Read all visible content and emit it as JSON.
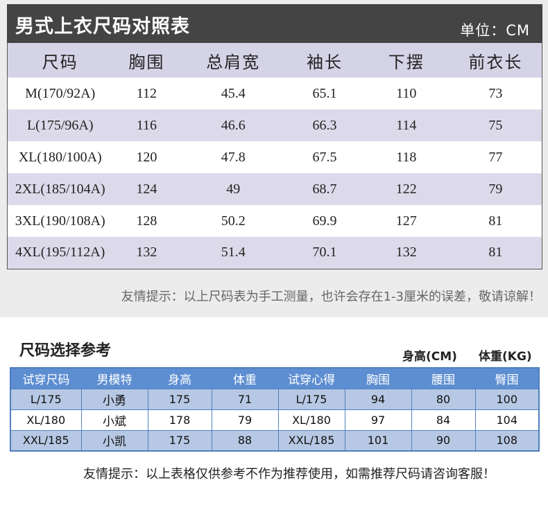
{
  "size_chart": {
    "title": "男式上衣尺码对照表",
    "unit": "单位：CM",
    "headers": [
      "尺码",
      "胸围",
      "总肩宽",
      "袖长",
      "下摆",
      "前衣长"
    ],
    "rows": [
      [
        "M(170/92A)",
        "112",
        "45.4",
        "65.1",
        "110",
        "73"
      ],
      [
        "L(175/96A)",
        "116",
        "46.6",
        "66.3",
        "114",
        "75"
      ],
      [
        "XL(180/100A)",
        "120",
        "47.8",
        "67.5",
        "118",
        "77"
      ],
      [
        "2XL(185/104A)",
        "124",
        "49",
        "68.7",
        "122",
        "79"
      ],
      [
        "3XL(190/108A)",
        "128",
        "50.2",
        "69.9",
        "127",
        "81"
      ],
      [
        "4XL(195/112A)",
        "132",
        "51.4",
        "70.1",
        "132",
        "81"
      ]
    ],
    "note": "友情提示：以上尺码表为手工测量，也许会存在1-3厘米的误差，敬请谅解！"
  },
  "reference": {
    "title": "尺码选择参考",
    "height_unit_label": "身高(CM)",
    "weight_unit_label": "体重(KG)",
    "headers": [
      "试穿尺码",
      "男模特",
      "身高",
      "体重",
      "试穿心得",
      "胸围",
      "腰围",
      "臀围"
    ],
    "rows": [
      [
        "L/175",
        "小勇",
        "175",
        "71",
        "L/175",
        "94",
        "80",
        "100"
      ],
      [
        "XL/180",
        "小斌",
        "178",
        "79",
        "XL/180",
        "97",
        "84",
        "104"
      ],
      [
        "XXL/185",
        "小凯",
        "175",
        "88",
        "XXL/185",
        "101",
        "90",
        "108"
      ]
    ],
    "note": "友情提示：以上表格仅供参考不作为推荐使用，如需推荐尺码请咨询客服！"
  }
}
